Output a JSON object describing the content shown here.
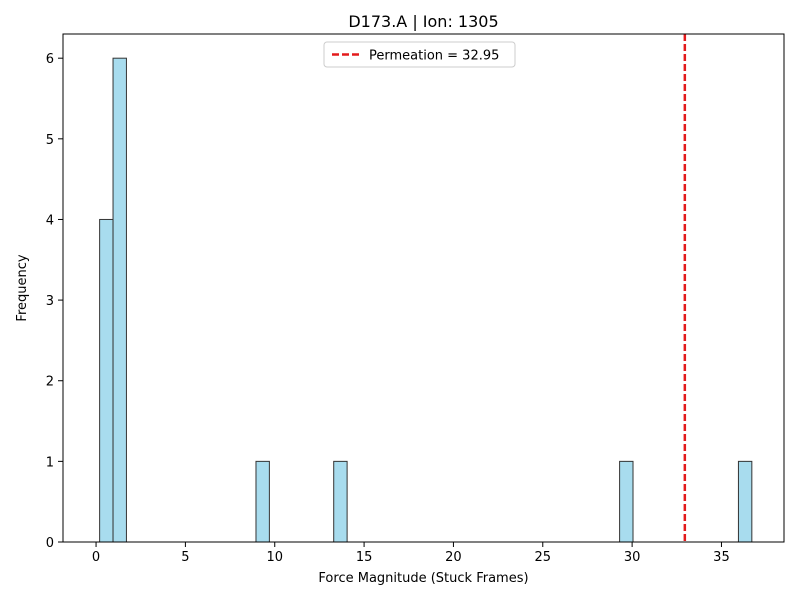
{
  "chart_data": {
    "type": "bar",
    "title": "D173.A | Ion: 1305",
    "xlabel": "Force Magnitude (Stuck Frames)",
    "ylabel": "Frequency",
    "xlim": [
      -1.85,
      38.5
    ],
    "ylim": [
      0,
      6.3
    ],
    "xticks": [
      0,
      5,
      10,
      15,
      20,
      25,
      30,
      35
    ],
    "yticks": [
      0,
      1,
      2,
      3,
      4,
      5,
      6
    ],
    "bins": [
      {
        "x0": 0.2,
        "x1": 0.95,
        "count": 4
      },
      {
        "x0": 0.95,
        "x1": 1.7,
        "count": 6
      },
      {
        "x0": 8.95,
        "x1": 9.7,
        "count": 1
      },
      {
        "x0": 13.3,
        "x1": 14.05,
        "count": 1
      },
      {
        "x0": 29.3,
        "x1": 30.05,
        "count": 1
      },
      {
        "x0": 35.95,
        "x1": 36.7,
        "count": 1
      }
    ],
    "bar_color": "#a8dcee",
    "bar_edge_color": "#333333",
    "threshold": {
      "value": 32.95,
      "label": "Permeation = 32.95",
      "color": "#e31a1c",
      "style": "dashed"
    },
    "legend_position": "upper center",
    "grid": false
  }
}
